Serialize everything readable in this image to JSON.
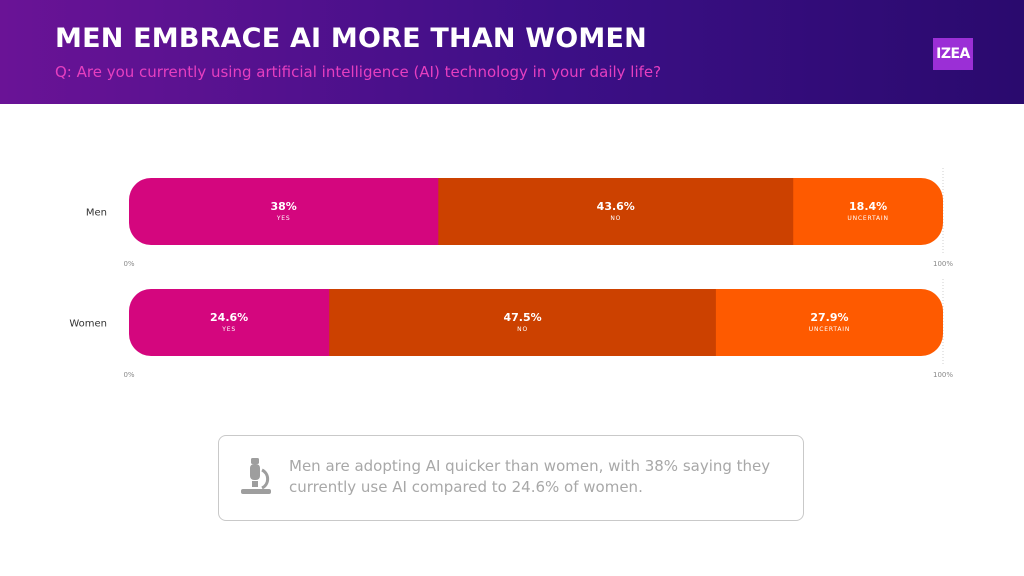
{
  "header": {
    "title": "MEN EMBRACE AI MORE THAN WOMEN",
    "subtitle": "Q: Are you currently using artificial intelligence (AI) technology in your daily life?",
    "logo_text": "IZEA"
  },
  "colors": {
    "header_start": "#6a1396",
    "header_end": "#2a0a6e",
    "yes": "#d4067e",
    "no": "#cc4100",
    "uncertain": "#fe5a00",
    "subtitle": "#e63fc0"
  },
  "chart_data": {
    "type": "bar",
    "orientation": "horizontal",
    "stacked": true,
    "title": "MEN EMBRACE AI MORE THAN WOMEN",
    "categories": [
      "Men",
      "Women"
    ],
    "series": [
      {
        "name": "YES",
        "values": [
          38,
          24.6
        ],
        "labels": [
          "38%",
          "24.6%"
        ]
      },
      {
        "name": "NO",
        "values": [
          43.6,
          47.5
        ],
        "labels": [
          "43.6%",
          "47.5%"
        ]
      },
      {
        "name": "UNCERTAIN",
        "values": [
          18.4,
          27.9
        ],
        "labels": [
          "18.4%",
          "27.9%"
        ]
      }
    ],
    "xlim": [
      0,
      100
    ],
    "axis_tick_labels": [
      "0%",
      "100%"
    ],
    "xlabel": "",
    "ylabel": ""
  },
  "callout": {
    "icon": "microscope-icon",
    "text": "Men are adopting AI quicker than women, with 38% saying they currently use AI compared to 24.6% of women."
  }
}
